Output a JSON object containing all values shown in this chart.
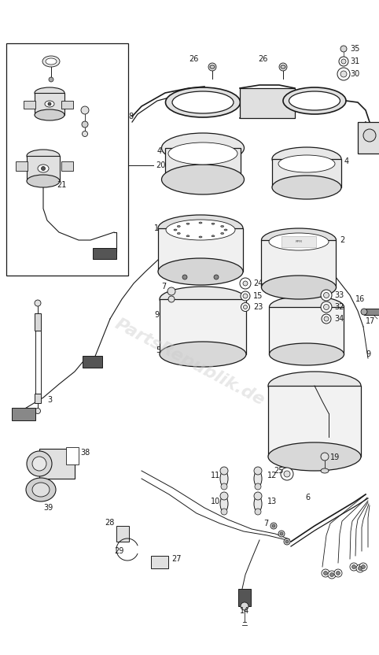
{
  "bg_color": "#ffffff",
  "line_color": "#1a1a1a",
  "watermark": "PartsRepublik.de",
  "fig_width": 4.82,
  "fig_height": 8.32,
  "dpi": 100
}
